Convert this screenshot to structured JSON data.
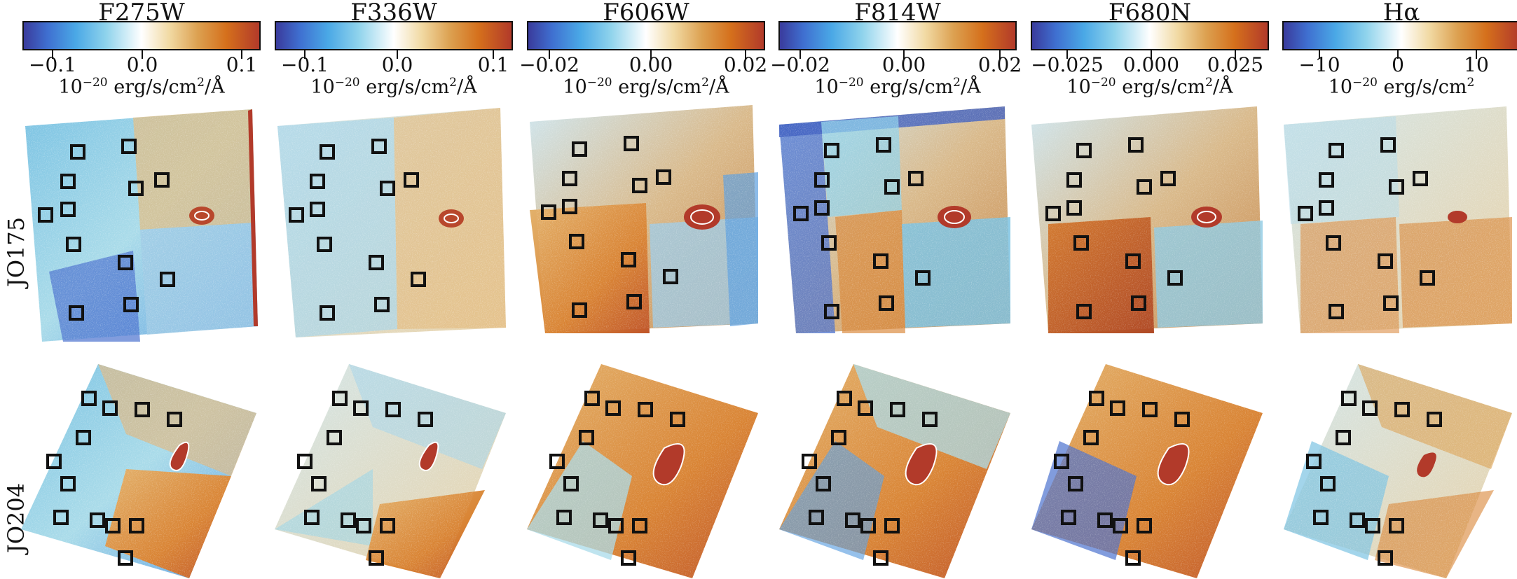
{
  "figure": {
    "columns": [
      {
        "title": "F275W",
        "ticks": [
          "−0.1",
          "0.0",
          "0.1"
        ],
        "unit_base": "10",
        "unit_exp": "−20",
        "unit_rest": " erg/s/cm",
        "unit_exp2": "2",
        "unit_tail": "/Å"
      },
      {
        "title": "F336W",
        "ticks": [
          "−0.1",
          "0.0",
          "0.1"
        ],
        "unit_base": "10",
        "unit_exp": "−20",
        "unit_rest": " erg/s/cm",
        "unit_exp2": "2",
        "unit_tail": "/Å"
      },
      {
        "title": "F606W",
        "ticks": [
          "−0.02",
          "0.00",
          "0.02"
        ],
        "unit_base": "10",
        "unit_exp": "−20",
        "unit_rest": " erg/s/cm",
        "unit_exp2": "2",
        "unit_tail": "/Å"
      },
      {
        "title": "F814W",
        "ticks": [
          "−0.02",
          "0.00",
          "0.02"
        ],
        "unit_base": "10",
        "unit_exp": "−20",
        "unit_rest": " erg/s/cm",
        "unit_exp2": "2",
        "unit_tail": "/Å"
      },
      {
        "title": "F680N",
        "ticks": [
          "−0.025",
          "0.000",
          "0.025"
        ],
        "unit_base": "10",
        "unit_exp": "−20",
        "unit_rest": " erg/s/cm",
        "unit_exp2": "2",
        "unit_tail": "/Å"
      },
      {
        "title": "Hα",
        "ticks": [
          "−10",
          "0",
          "10"
        ],
        "unit_base": "10",
        "unit_exp": "−20",
        "unit_rest": " erg/s/cm",
        "unit_exp2": "2",
        "unit_tail": ""
      }
    ],
    "rows": [
      {
        "label": "JO175"
      },
      {
        "label": "JO204"
      }
    ],
    "colormap": [
      "#3a3b9c",
      "#4aa8e6",
      "#ffffff",
      "#dca050",
      "#b23a2a"
    ]
  }
}
